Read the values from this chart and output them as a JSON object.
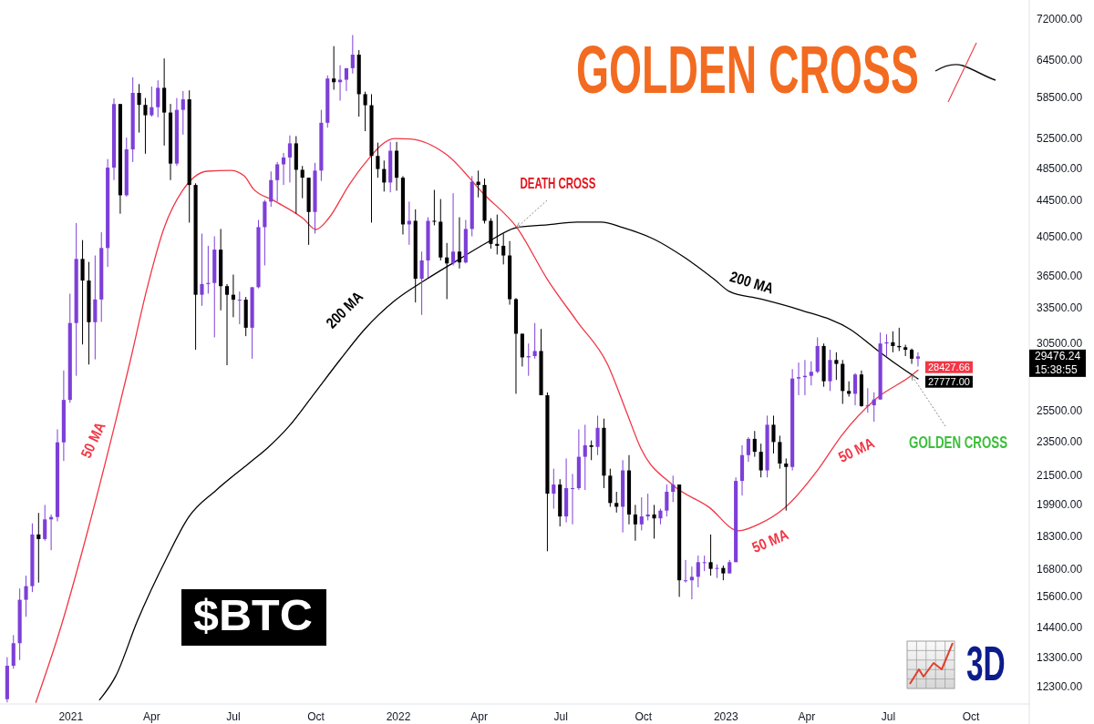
{
  "chart_data": {
    "type": "candlestick",
    "title": "GOLDEN CROSS",
    "subtitle": "$BTC",
    "xlim": [
      "2020-10-14",
      "2023-12-05"
    ],
    "ylim": [
      11750,
      75700
    ],
    "log": true,
    "xticks": [
      {
        "value": "2021-01-01",
        "label": "2021"
      },
      {
        "value": "2021-04-01",
        "label": "Apr"
      },
      {
        "value": "2021-07-01",
        "label": "Jul"
      },
      {
        "value": "2021-10-01",
        "label": "Oct"
      },
      {
        "value": "2022-01-01",
        "label": "2022"
      },
      {
        "value": "2022-04-01",
        "label": "Apr"
      },
      {
        "value": "2022-07-01",
        "label": "Jul"
      },
      {
        "value": "2022-10-01",
        "label": "Oct"
      },
      {
        "value": "2023-01-01",
        "label": "2023"
      },
      {
        "value": "2023-04-01",
        "label": "Apr"
      },
      {
        "value": "2023-07-01",
        "label": "Jul"
      },
      {
        "value": "2023-10-01",
        "label": "Oct"
      }
    ],
    "yticks": [
      {
        "value": 12300,
        "label": "12300.00"
      },
      {
        "value": 13300,
        "label": "13300.00"
      },
      {
        "value": 14400,
        "label": "14400.00"
      },
      {
        "value": 15600,
        "label": "15600.00"
      },
      {
        "value": 16800,
        "label": "16800.00"
      },
      {
        "value": 18300,
        "label": "18300.00"
      },
      {
        "value": 19900,
        "label": "19900.00"
      },
      {
        "value": 21500,
        "label": "21500.00"
      },
      {
        "value": 23500,
        "label": "23500.00"
      },
      {
        "value": 25500,
        "label": "25500.00"
      },
      {
        "value": 30500,
        "label": "30500.00"
      },
      {
        "value": 33500,
        "label": "33500.00"
      },
      {
        "value": 36500,
        "label": "36500.00"
      },
      {
        "value": 40500,
        "label": "40500.00"
      },
      {
        "value": 44500,
        "label": "44500.00"
      },
      {
        "value": 48500,
        "label": "48500.00"
      },
      {
        "value": 52500,
        "label": "52500.00"
      },
      {
        "value": 58500,
        "label": "58500.00"
      },
      {
        "value": 64500,
        "label": "64500.00"
      },
      {
        "value": 72000,
        "label": "72000.00"
      }
    ],
    "series": [
      {
        "type": "line",
        "color": "#f23645",
        "x": [
          "2020-11-23",
          "2020-12-21",
          "2021-01-20",
          "2021-02-20",
          "2021-03-08",
          "2021-03-26",
          "2021-04-15",
          "2021-05-05",
          "2021-06-02",
          "2021-06-28",
          "2021-07-13",
          "2021-07-23",
          "2021-08-15",
          "2021-09-17",
          "2021-10-01",
          "2021-10-15",
          "2021-11-07",
          "2021-11-24",
          "2021-12-28",
          "2022-01-14",
          "2022-02-24",
          "2022-04-06",
          "2022-05-13",
          "2022-06-16",
          "2022-07-19",
          "2022-08-22",
          "2022-09-12",
          "2022-09-28",
          "2022-11-02",
          "2022-12-13",
          "2023-01-15",
          "2023-02-08",
          "2023-03-07",
          "2023-04-14",
          "2023-05-10",
          "2023-06-17",
          "2023-07-27",
          "2023-08-03"
        ],
        "values": [
          11800,
          14420,
          18620,
          24860,
          29080,
          35000,
          41450,
          45640,
          48120,
          48230,
          47540,
          45960,
          44540,
          42450,
          41240,
          42450,
          46400,
          49050,
          52470,
          52410,
          50250,
          45310,
          41450,
          36140,
          32350,
          28870,
          25470,
          23130,
          21000,
          19780,
          18580,
          18940,
          19730,
          21880,
          23920,
          26340,
          28040,
          28427.66
        ],
        "value_labels": [
          null,
          null,
          null,
          null,
          null,
          null,
          null,
          null,
          null,
          null,
          null,
          null,
          null,
          null,
          null,
          null,
          null,
          null,
          null,
          null,
          null,
          null,
          null,
          null,
          null,
          null,
          null,
          null,
          null,
          null,
          null,
          null,
          null,
          null,
          null,
          null,
          null,
          "28427.66"
        ]
      },
      {
        "type": "line",
        "color": "#000000",
        "x": [
          "2021-02-02",
          "2021-02-20",
          "2021-03-16",
          "2021-04-18",
          "2021-05-12",
          "2021-06-12",
          "2021-07-19",
          "2021-08-08",
          "2021-09-01",
          "2021-09-27",
          "2021-10-28",
          "2021-11-24",
          "2021-12-28",
          "2022-02-01",
          "2022-03-06",
          "2022-04-09",
          "2022-05-13",
          "2022-06-16",
          "2022-07-19",
          "2022-08-15",
          "2022-09-08",
          "2022-10-13",
          "2022-11-16",
          "2022-12-19",
          "2023-01-05",
          "2023-02-08",
          "2023-03-24",
          "2023-05-20",
          "2023-06-17",
          "2023-07-10",
          "2023-08-03"
        ],
        "values": [
          11880,
          12650,
          14630,
          17310,
          19250,
          20690,
          22240,
          23130,
          24500,
          26530,
          29220,
          31640,
          34170,
          36140,
          37920,
          39800,
          41450,
          41750,
          42050,
          42050,
          41450,
          40190,
          38290,
          36140,
          35000,
          34330,
          33350,
          31640,
          30060,
          28870,
          27777
        ],
        "value_labels": [
          null,
          null,
          null,
          null,
          null,
          null,
          null,
          null,
          null,
          null,
          null,
          null,
          null,
          null,
          null,
          null,
          null,
          null,
          null,
          null,
          null,
          null,
          null,
          null,
          null,
          null,
          null,
          null,
          null,
          null,
          "27777.00"
        ]
      },
      {
        "x": [
          "2020-10-22",
          "2020-10-29",
          "2020-11-05",
          "2020-11-12",
          "2020-11-19",
          "2020-11-26",
          "2020-12-03",
          "2020-12-10",
          "2020-12-17",
          "2020-12-24",
          "2020-12-31",
          "2021-01-07",
          "2021-01-14",
          "2021-01-21",
          "2021-01-28",
          "2021-02-04",
          "2021-02-11",
          "2021-02-18",
          "2021-02-25",
          "2021-03-04",
          "2021-03-11",
          "2021-03-18",
          "2021-03-25",
          "2021-04-01",
          "2021-04-08",
          "2021-04-15",
          "2021-04-22",
          "2021-04-29",
          "2021-05-06",
          "2021-05-13",
          "2021-05-20",
          "2021-05-27",
          "2021-06-03",
          "2021-06-10",
          "2021-06-17",
          "2021-06-24",
          "2021-07-01",
          "2021-07-08",
          "2021-07-15",
          "2021-07-22",
          "2021-07-29",
          "2021-08-05",
          "2021-08-12",
          "2021-08-19",
          "2021-08-26",
          "2021-09-02",
          "2021-09-09",
          "2021-09-16",
          "2021-09-23",
          "2021-09-30",
          "2021-10-07",
          "2021-10-14",
          "2021-10-21",
          "2021-10-28",
          "2021-11-04",
          "2021-11-11",
          "2021-11-18",
          "2021-11-25",
          "2021-12-02",
          "2021-12-09",
          "2021-12-16",
          "2021-12-23",
          "2021-12-30",
          "2022-01-06",
          "2022-01-13",
          "2022-01-20",
          "2022-01-27",
          "2022-02-03",
          "2022-02-10",
          "2022-02-17",
          "2022-02-24",
          "2022-03-03",
          "2022-03-10",
          "2022-03-17",
          "2022-03-24",
          "2022-03-31",
          "2022-04-07",
          "2022-04-14",
          "2022-04-21",
          "2022-04-28",
          "2022-05-05",
          "2022-05-12",
          "2022-05-19",
          "2022-05-26",
          "2022-06-02",
          "2022-06-09",
          "2022-06-16",
          "2022-06-23",
          "2022-06-30",
          "2022-07-07",
          "2022-07-14",
          "2022-07-21",
          "2022-07-28",
          "2022-08-04",
          "2022-08-11",
          "2022-08-18",
          "2022-08-25",
          "2022-09-01",
          "2022-09-08",
          "2022-09-15",
          "2022-09-22",
          "2022-09-29",
          "2022-10-06",
          "2022-10-13",
          "2022-10-20",
          "2022-10-27",
          "2022-11-03",
          "2022-11-10",
          "2022-11-17",
          "2022-11-24",
          "2022-12-01",
          "2022-12-08",
          "2022-12-15",
          "2022-12-22",
          "2022-12-29",
          "2023-01-05",
          "2023-01-12",
          "2023-01-19",
          "2023-01-26",
          "2023-02-02",
          "2023-02-09",
          "2023-02-16",
          "2023-02-23",
          "2023-03-02",
          "2023-03-09",
          "2023-03-16",
          "2023-03-23",
          "2023-03-30",
          "2023-04-06",
          "2023-04-13",
          "2023-04-20",
          "2023-04-27",
          "2023-05-04",
          "2023-05-11",
          "2023-05-18",
          "2023-05-25",
          "2023-06-01",
          "2023-06-08",
          "2023-06-15",
          "2023-06-22",
          "2023-06-29",
          "2023-07-06",
          "2023-07-13",
          "2023-07-20",
          "2023-07-27",
          "2023-08-03"
        ],
        "ohlc": [
          [
            11900,
            13300,
            11800,
            13000
          ],
          [
            13000,
            14100,
            12900,
            13800
          ],
          [
            13800,
            15950,
            13200,
            15480
          ],
          [
            15480,
            16500,
            14800,
            16050
          ],
          [
            16050,
            18950,
            15800,
            18400
          ],
          [
            18400,
            19480,
            16200,
            18180
          ],
          [
            18180,
            19900,
            18100,
            19150
          ],
          [
            19150,
            19400,
            17650,
            19270
          ],
          [
            19270,
            24300,
            19050,
            23480
          ],
          [
            23480,
            28400,
            22350,
            26270
          ],
          [
            26270,
            34800,
            26070,
            32200
          ],
          [
            32200,
            41950,
            28000,
            38150
          ],
          [
            38150,
            40100,
            30420,
            36030
          ],
          [
            36030,
            37850,
            28850,
            32270
          ],
          [
            32270,
            38500,
            29250,
            34270
          ],
          [
            34270,
            40950,
            32300,
            39270
          ],
          [
            39270,
            49700,
            37350,
            48580
          ],
          [
            48580,
            58350,
            47000,
            57480
          ],
          [
            57480,
            57500,
            43000,
            45150
          ],
          [
            45150,
            52600,
            45000,
            50980
          ],
          [
            50980,
            61700,
            49300,
            59200
          ],
          [
            59200,
            60600,
            53300,
            57350
          ],
          [
            57350,
            58400,
            50400,
            55800
          ],
          [
            55800,
            60200,
            55600,
            57000
          ],
          [
            57000,
            61200,
            55500,
            60000
          ],
          [
            60000,
            64850,
            51500,
            56200
          ],
          [
            56200,
            57500,
            47000,
            49100
          ],
          [
            49100,
            58400,
            48800,
            56600
          ],
          [
            56600,
            59500,
            53000,
            58200
          ],
          [
            58200,
            59600,
            42000,
            46400
          ],
          [
            46400,
            46600,
            30000,
            34700
          ],
          [
            34700,
            40800,
            33700,
            35700
          ],
          [
            35700,
            39500,
            34800,
            35800
          ],
          [
            35800,
            40500,
            31000,
            39100
          ],
          [
            39100,
            41300,
            33300,
            35500
          ],
          [
            35500,
            35700,
            28800,
            34700
          ],
          [
            34700,
            36600,
            32700,
            34250
          ],
          [
            34250,
            35000,
            32100,
            34250
          ],
          [
            34250,
            34500,
            31100,
            31800
          ],
          [
            31800,
            35400,
            29300,
            35400
          ],
          [
            35400,
            42300,
            35300,
            41500
          ],
          [
            41500,
            44600,
            37500,
            44400
          ],
          [
            44400,
            48100,
            43800,
            47000
          ],
          [
            47000,
            49300,
            44400,
            49000
          ],
          [
            49000,
            50500,
            46400,
            49900
          ],
          [
            49900,
            52900,
            46700,
            51800
          ],
          [
            51800,
            52800,
            43000,
            48300
          ],
          [
            48300,
            48800,
            44800,
            47300
          ],
          [
            47300,
            47300,
            39600,
            43200
          ],
          [
            43200,
            49200,
            40800,
            48200
          ],
          [
            48200,
            56600,
            46900,
            54700
          ],
          [
            54700,
            62000,
            54000,
            61500
          ],
          [
            61500,
            67000,
            59700,
            60900
          ],
          [
            60900,
            63700,
            58000,
            61300
          ],
          [
            61300,
            63200,
            59500,
            63200
          ],
          [
            63200,
            69000,
            62300,
            65500
          ],
          [
            65500,
            66300,
            55600,
            59000
          ],
          [
            59000,
            59400,
            53500,
            57300
          ],
          [
            57300,
            59000,
            42000,
            50100
          ],
          [
            50100,
            51900,
            47300,
            48400
          ],
          [
            48400,
            49500,
            45600,
            46700
          ],
          [
            46700,
            52000,
            45500,
            50800
          ],
          [
            50800,
            52000,
            45700,
            47300
          ],
          [
            47300,
            47500,
            40700,
            41800
          ],
          [
            41800,
            44400,
            39600,
            42200
          ],
          [
            42200,
            43500,
            34000,
            36200
          ],
          [
            36200,
            38900,
            32900,
            38000
          ],
          [
            38000,
            42600,
            36300,
            42200
          ],
          [
            42200,
            45800,
            41700,
            42100
          ],
          [
            42100,
            44700,
            38000,
            38300
          ],
          [
            38300,
            39800,
            34300,
            37700
          ],
          [
            37700,
            45400,
            37500,
            38900
          ],
          [
            38900,
            42600,
            37200,
            37800
          ],
          [
            37800,
            42300,
            37700,
            41300
          ],
          [
            41300,
            47500,
            40500,
            46800
          ],
          [
            46800,
            48200,
            44900,
            46400
          ],
          [
            46400,
            47200,
            41900,
            42200
          ],
          [
            42200,
            42500,
            39200,
            39700
          ],
          [
            39700,
            42900,
            38600,
            39500
          ],
          [
            39500,
            40800,
            37600,
            38500
          ],
          [
            38500,
            40000,
            33800,
            34300
          ],
          [
            34300,
            34400,
            26700,
            31300
          ],
          [
            31300,
            31300,
            28700,
            29400
          ],
          [
            29400,
            30500,
            28000,
            29500
          ],
          [
            29500,
            32200,
            29300,
            29900
          ],
          [
            29900,
            31700,
            26600,
            26600
          ],
          [
            26600,
            26800,
            17600,
            20500
          ],
          [
            20500,
            21900,
            19700,
            21000
          ],
          [
            21000,
            21300,
            18800,
            19300
          ],
          [
            19300,
            22500,
            19000,
            20800
          ],
          [
            20800,
            21600,
            18900,
            20800
          ],
          [
            20800,
            24300,
            20700,
            22600
          ],
          [
            22600,
            24600,
            20700,
            23300
          ],
          [
            23300,
            23600,
            22400,
            23200
          ],
          [
            23200,
            25200,
            22700,
            24400
          ],
          [
            24400,
            25000,
            20800,
            21500
          ],
          [
            21500,
            21900,
            19800,
            20000
          ],
          [
            20000,
            20600,
            19500,
            19800
          ],
          [
            19800,
            22400,
            18500,
            21800
          ],
          [
            21800,
            22700,
            18900,
            19400
          ],
          [
            19400,
            19900,
            18100,
            18900
          ],
          [
            18900,
            20300,
            18600,
            19300
          ],
          [
            19300,
            20500,
            19100,
            19400
          ],
          [
            19400,
            19900,
            18200,
            19200
          ],
          [
            19200,
            19700,
            18900,
            19600
          ],
          [
            19600,
            21000,
            19300,
            20600
          ],
          [
            20600,
            21500,
            20050,
            21000
          ],
          [
            21000,
            21000,
            15600,
            16300
          ],
          [
            16300,
            17200,
            16200,
            16300
          ],
          [
            16300,
            16900,
            15500,
            16450
          ],
          [
            16450,
            17400,
            16000,
            17100
          ],
          [
            17100,
            17400,
            16700,
            17100
          ],
          [
            17100,
            18400,
            16500,
            16800
          ],
          [
            16800,
            17000,
            16400,
            16840
          ],
          [
            16840,
            16950,
            16300,
            16600
          ],
          [
            16600,
            17200,
            16600,
            17100
          ],
          [
            17100,
            21400,
            17100,
            21200
          ],
          [
            21200,
            23300,
            20400,
            22700
          ],
          [
            22700,
            23800,
            22300,
            23700
          ],
          [
            23700,
            24200,
            22600,
            22900
          ],
          [
            22900,
            23400,
            21400,
            21800
          ],
          [
            21800,
            25200,
            21400,
            24600
          ],
          [
            24600,
            25200,
            22800,
            23500
          ],
          [
            23500,
            23900,
            21900,
            22200
          ],
          [
            22200,
            22500,
            19600,
            22000
          ],
          [
            22000,
            28500,
            21800,
            27800
          ],
          [
            27800,
            29000,
            26600,
            27900
          ],
          [
            27900,
            29200,
            26600,
            28000
          ],
          [
            28000,
            29100,
            27300,
            28300
          ],
          [
            28300,
            31000,
            28200,
            30300
          ],
          [
            30300,
            30500,
            27200,
            27600
          ],
          [
            27600,
            30000,
            26900,
            29200
          ],
          [
            29200,
            29800,
            27700,
            28900
          ],
          [
            28900,
            29200,
            26000,
            26900
          ],
          [
            26900,
            27600,
            26500,
            26700
          ],
          [
            26700,
            28200,
            25900,
            28100
          ],
          [
            28100,
            28400,
            25800,
            25850
          ],
          [
            25850,
            27100,
            25400,
            25900
          ],
          [
            25900,
            26800,
            24800,
            26300
          ],
          [
            26300,
            31400,
            26300,
            30500
          ],
          [
            30500,
            31250,
            29500,
            30600
          ],
          [
            30600,
            31500,
            29800,
            30300
          ],
          [
            30300,
            31800,
            29900,
            30200
          ],
          [
            30200,
            30400,
            29500,
            30000
          ],
          [
            30000,
            30100,
            28900,
            29300
          ],
          [
            29300,
            29800,
            28700,
            29476.24
          ]
        ],
        "colors": [
          "#7d3fd8",
          "#7d3fd8",
          "#7d3fd8",
          "#7d3fd8",
          "#7d3fd8",
          "#000000",
          "#7d3fd8",
          "#7d3fd8",
          "#7d3fd8",
          "#7d3fd8",
          "#7d3fd8",
          "#7d3fd8",
          "#000000",
          "#000000",
          "#7d3fd8",
          "#7d3fd8",
          "#7d3fd8",
          "#7d3fd8",
          "#000000",
          "#7d3fd8",
          "#7d3fd8",
          "#000000",
          "#000000",
          "#7d3fd8",
          "#7d3fd8",
          "#000000",
          "#000000",
          "#7d3fd8",
          "#7d3fd8",
          "#000000",
          "#000000",
          "#7d3fd8",
          "#7d3fd8",
          "#7d3fd8",
          "#000000",
          "#000000",
          "#000000",
          "#7d3fd8",
          "#000000",
          "#7d3fd8",
          "#7d3fd8",
          "#7d3fd8",
          "#7d3fd8",
          "#7d3fd8",
          "#7d3fd8",
          "#7d3fd8",
          "#000000",
          "#000000",
          "#000000",
          "#7d3fd8",
          "#7d3fd8",
          "#7d3fd8",
          "#000000",
          "#7d3fd8",
          "#7d3fd8",
          "#7d3fd8",
          "#000000",
          "#000000",
          "#000000",
          "#000000",
          "#000000",
          "#7d3fd8",
          "#000000",
          "#000000",
          "#7d3fd8",
          "#000000",
          "#7d3fd8",
          "#7d3fd8",
          "#000000",
          "#000000",
          "#000000",
          "#7d3fd8",
          "#000000",
          "#7d3fd8",
          "#7d3fd8",
          "#000000",
          "#000000",
          "#000000",
          "#000000",
          "#000000",
          "#000000",
          "#000000",
          "#000000",
          "#7d3fd8",
          "#7d3fd8",
          "#000000",
          "#000000",
          "#7d3fd8",
          "#000000",
          "#7d3fd8",
          "#7d3fd8",
          "#7d3fd8",
          "#7d3fd8",
          "#000000",
          "#7d3fd8",
          "#000000",
          "#000000",
          "#000000",
          "#7d3fd8",
          "#000000",
          "#000000",
          "#7d3fd8",
          "#7d3fd8",
          "#000000",
          "#7d3fd8",
          "#7d3fd8",
          "#7d3fd8",
          "#000000",
          "#7d3fd8",
          "#7d3fd8",
          "#7d3fd8",
          "#7d3fd8",
          "#000000",
          "#7d3fd8",
          "#000000",
          "#7d3fd8",
          "#7d3fd8",
          "#7d3fd8",
          "#7d3fd8",
          "#000000",
          "#000000",
          "#7d3fd8",
          "#000000",
          "#000000",
          "#000000",
          "#7d3fd8",
          "#7d3fd8",
          "#7d3fd8",
          "#7d3fd8",
          "#7d3fd8",
          "#000000",
          "#7d3fd8",
          "#000000",
          "#000000",
          "#000000",
          "#7d3fd8",
          "#000000",
          "#7d3fd8",
          "#7d3fd8",
          "#7d3fd8",
          "#7d3fd8",
          "#000000",
          "#000000",
          "#000000",
          "#000000",
          "#7d3fd8"
        ],
        "value_labels": [
          null,
          null,
          null,
          null,
          null,
          null,
          null,
          null,
          null,
          null,
          null,
          null,
          null,
          null,
          null,
          null,
          null,
          null,
          null,
          null,
          null,
          null,
          null,
          null,
          null,
          null,
          null,
          null,
          null,
          null,
          null,
          null,
          null,
          null,
          null,
          null,
          null,
          null,
          null,
          null,
          null,
          null,
          null,
          null,
          null,
          null,
          null,
          null,
          null,
          null,
          null,
          null,
          null,
          null,
          null,
          null,
          null,
          null,
          null,
          null,
          null,
          null,
          null,
          null,
          null,
          null,
          null,
          null,
          null,
          null,
          null,
          null,
          null,
          null,
          null,
          null,
          null,
          null,
          null,
          null,
          null,
          null,
          null,
          null,
          null,
          null,
          null,
          null,
          null,
          null,
          null,
          null,
          null,
          null,
          null,
          null,
          null,
          null,
          null,
          null,
          null,
          null,
          null,
          null,
          null,
          null,
          null,
          null,
          null,
          null,
          null,
          null,
          null,
          null,
          null,
          null,
          null,
          null,
          null,
          null,
          null,
          null,
          null,
          null,
          null,
          null,
          null,
          null,
          null,
          null,
          null,
          null,
          null,
          null,
          null,
          null,
          null,
          null,
          null,
          null,
          null,
          null,
          null,
          null,
          null,
          "29476.24"
        ]
      }
    ],
    "annotations": [
      {
        "text": "DEATH CROSS",
        "x": "2022-05-13",
        "y": 41450
      },
      {
        "text": "GOLDEN CROSS",
        "x": "2023-07-27",
        "y": 28040
      },
      {
        "text": "200 MA",
        "x": "2021-11-24",
        "y": 31640
      },
      {
        "text": "200 MA",
        "x": "2023-02-08",
        "y": 34330
      },
      {
        "text": "50 MA",
        "x": "2021-02-20",
        "y": 24860
      },
      {
        "text": "50 MA",
        "x": "2023-05-10",
        "y": 23920
      },
      {
        "text": "50 MA",
        "x": "2023-02-08",
        "y": 18940
      },
      "15:38:55",
      "3D"
    ]
  }
}
